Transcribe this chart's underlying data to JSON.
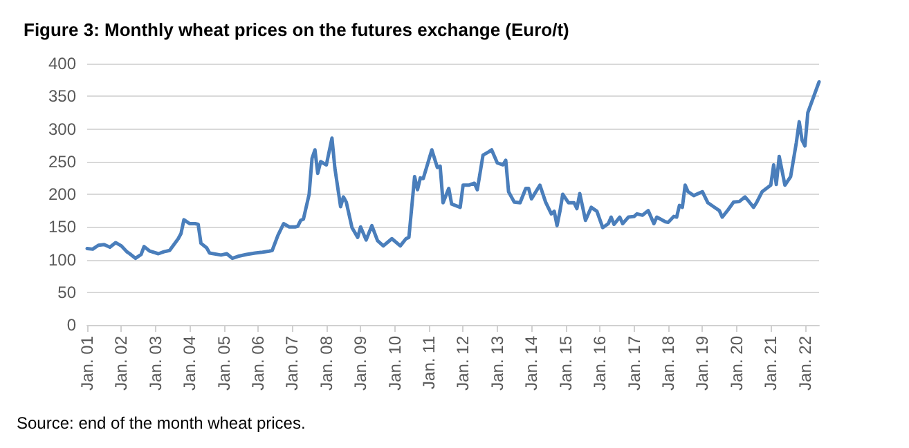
{
  "chart_data": {
    "type": "line",
    "title": "Figure 3: Monthly wheat prices on the futures exchange (Euro/t)",
    "annotations": [
      "Source: end of the month wheat prices."
    ],
    "x": [
      "2001-01",
      "2001-03",
      "2001-05",
      "2001-07",
      "2001-09",
      "2001-11",
      "2002-01",
      "2002-03",
      "2002-04",
      "2002-06",
      "2002-08",
      "2002-09",
      "2002-11",
      "2003-02",
      "2003-04",
      "2003-06",
      "2003-09",
      "2003-10",
      "2003-11",
      "2004-01",
      "2004-03",
      "2004-04",
      "2004-05",
      "2004-07",
      "2004-08",
      "2004-12",
      "2005-02",
      "2005-04",
      "2005-06",
      "2005-09",
      "2005-12",
      "2006-02",
      "2006-05",
      "2006-06",
      "2006-08",
      "2006-10",
      "2006-12",
      "2007-02",
      "2007-03",
      "2007-04",
      "2007-05",
      "2007-07",
      "2007-08",
      "2007-09",
      "2007-10",
      "2007-11",
      "2008-01",
      "2008-03",
      "2008-04",
      "2008-06",
      "2008-07",
      "2008-08",
      "2008-10",
      "2008-12",
      "2009-01",
      "2009-03",
      "2009-05",
      "2009-07",
      "2009-09",
      "2009-12",
      "2010-03",
      "2010-05",
      "2010-06",
      "2010-08",
      "2010-09",
      "2010-10",
      "2010-11",
      "2011-02",
      "2011-04",
      "2011-05",
      "2011-06",
      "2011-08",
      "2011-09",
      "2011-12",
      "2012-01",
      "2012-03",
      "2012-05",
      "2012-06",
      "2012-08",
      "2012-10",
      "2012-11",
      "2013-01",
      "2013-03",
      "2013-04",
      "2013-05",
      "2013-07",
      "2013-09",
      "2013-11",
      "2013-12",
      "2014-01",
      "2014-04",
      "2014-06",
      "2014-08",
      "2014-09",
      "2014-10",
      "2014-11",
      "2014-12",
      "2015-02",
      "2015-04",
      "2015-05",
      "2015-06",
      "2015-08",
      "2015-10",
      "2015-12",
      "2016-02",
      "2016-04",
      "2016-05",
      "2016-06",
      "2016-08",
      "2016-09",
      "2016-11",
      "2017-01",
      "2017-02",
      "2017-04",
      "2017-06",
      "2017-08",
      "2017-09",
      "2017-12",
      "2018-01",
      "2018-03",
      "2018-04",
      "2018-05",
      "2018-06",
      "2018-07",
      "2018-08",
      "2018-10",
      "2019-01",
      "2019-03",
      "2019-05",
      "2019-07",
      "2019-08",
      "2019-10",
      "2019-12",
      "2020-02",
      "2020-04",
      "2020-05",
      "2020-07",
      "2020-08",
      "2020-10",
      "2021-01",
      "2021-02",
      "2021-03",
      "2021-04",
      "2021-06",
      "2021-08",
      "2021-10",
      "2021-11",
      "2021-12",
      "2022-01",
      "2022-02",
      "2022-06"
    ],
    "series": [
      {
        "color": "#4a7ebb",
        "values": [
          117,
          116,
          122,
          123,
          119,
          126,
          121,
          112,
          109,
          102,
          108,
          120,
          113,
          109,
          112,
          114,
          132,
          140,
          161,
          155,
          155,
          154,
          125,
          118,
          110,
          107,
          109,
          102,
          105,
          108,
          110,
          111,
          113,
          114,
          137,
          155,
          150,
          150,
          151,
          160,
          162,
          200,
          255,
          268,
          232,
          250,
          245,
          286,
          240,
          181,
          196,
          188,
          149,
          134,
          150,
          130,
          152,
          129,
          121,
          132,
          121,
          132,
          134,
          227,
          207,
          225,
          224,
          268,
          241,
          243,
          187,
          209,
          185,
          180,
          214,
          214,
          217,
          207,
          260,
          265,
          268,
          248,
          245,
          252,
          204,
          188,
          187,
          209,
          209,
          193,
          214,
          188,
          170,
          174,
          152,
          174,
          200,
          187,
          187,
          178,
          201,
          160,
          180,
          174,
          149,
          155,
          165,
          154,
          165,
          155,
          165,
          166,
          170,
          168,
          175,
          155,
          165,
          158,
          157,
          166,
          165,
          183,
          180,
          214,
          204,
          198,
          204,
          187,
          181,
          175,
          165,
          176,
          188,
          189,
          196,
          191,
          180,
          187,
          204,
          214,
          245,
          215,
          258,
          214,
          227,
          279,
          311,
          283,
          274,
          325,
          372
        ]
      }
    ],
    "xlim": [
      "2001-01",
      "2022-06"
    ],
    "xticks": [
      {
        "value": "2001-01",
        "label": "Jan. 01"
      },
      {
        "value": "2002-01",
        "label": "Jan. 02"
      },
      {
        "value": "2003-01",
        "label": "Jan. 03"
      },
      {
        "value": "2004-01",
        "label": "Jan. 04"
      },
      {
        "value": "2005-01",
        "label": "Jan. 05"
      },
      {
        "value": "2006-01",
        "label": "Jan. 06"
      },
      {
        "value": "2007-01",
        "label": "Jan. 07"
      },
      {
        "value": "2008-01",
        "label": "Jan. 08"
      },
      {
        "value": "2009-01",
        "label": "Jan. 09"
      },
      {
        "value": "2010-01",
        "label": "Jan. 10"
      },
      {
        "value": "2011-01",
        "label": "Jan. 11"
      },
      {
        "value": "2012-01",
        "label": "Jan. 12"
      },
      {
        "value": "2013-01",
        "label": "Jan. 13"
      },
      {
        "value": "2014-01",
        "label": "Jan. 14"
      },
      {
        "value": "2015-01",
        "label": "Jan. 15"
      },
      {
        "value": "2016-01",
        "label": "Jan. 16"
      },
      {
        "value": "2017-01",
        "label": "Jan. 17"
      },
      {
        "value": "2018-01",
        "label": "Jan. 18"
      },
      {
        "value": "2019-01",
        "label": "Jan. 19"
      },
      {
        "value": "2020-01",
        "label": "Jan. 20"
      },
      {
        "value": "2021-01",
        "label": "Jan. 21"
      },
      {
        "value": "2022-01",
        "label": "Jan. 22"
      }
    ],
    "ylim": [
      0,
      400
    ],
    "yticks": [
      0,
      50,
      100,
      150,
      200,
      250,
      300,
      350,
      400
    ],
    "grid": "y",
    "marker": "none",
    "line_style": "solid"
  }
}
